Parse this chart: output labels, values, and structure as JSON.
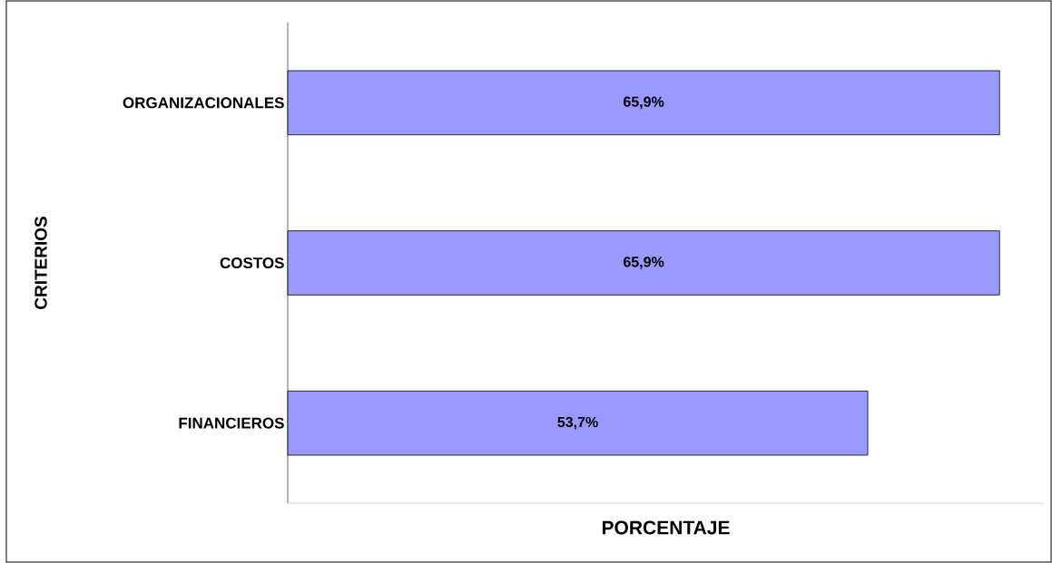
{
  "chart_data": {
    "type": "bar",
    "orientation": "horizontal",
    "xlabel": "PORCENTAJE",
    "ylabel": "CRITERIOS",
    "categories": [
      "ORGANIZACIONALES",
      "COSTOS",
      "FINANCIEROS"
    ],
    "values": [
      65.9,
      65.9,
      53.7
    ],
    "value_labels": [
      "65,9%",
      "65,9%",
      "53,7%"
    ],
    "color": "#9999ff",
    "xlim": [
      0,
      70
    ]
  }
}
